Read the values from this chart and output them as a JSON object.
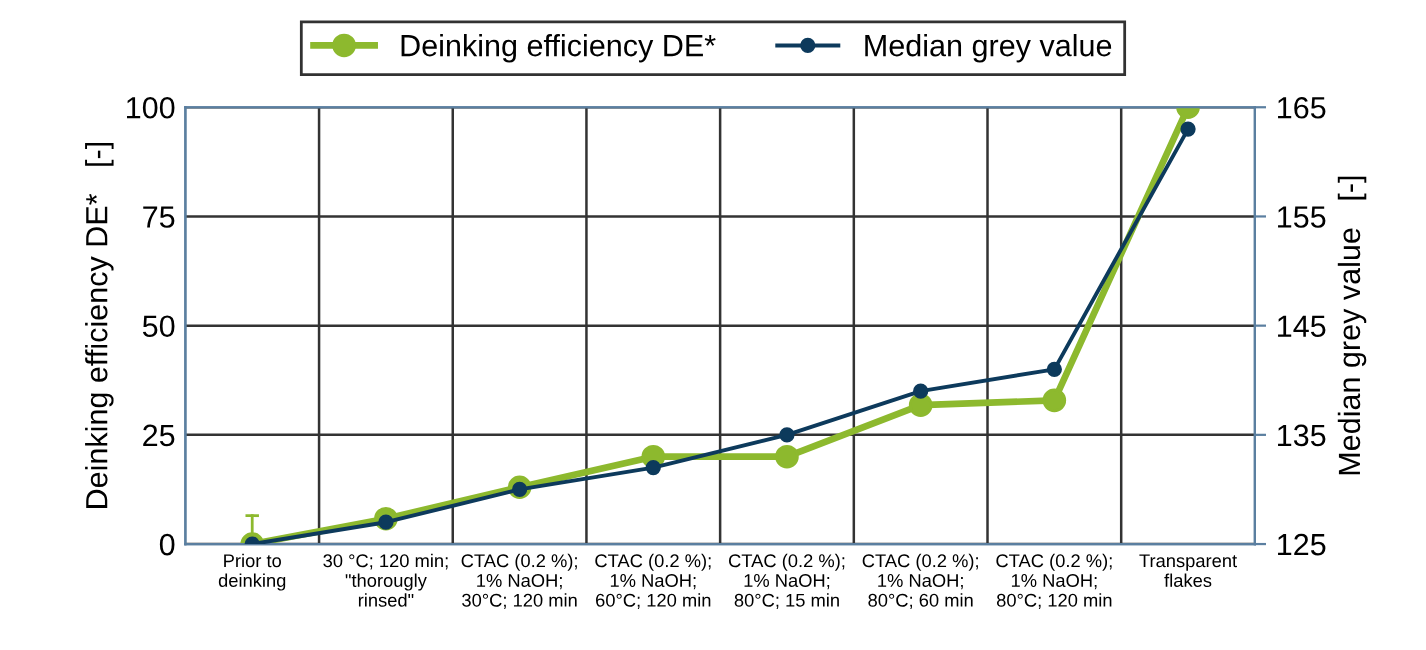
{
  "chart_data": {
    "type": "line",
    "categories": [
      "Prior to\ndeinking",
      "30 °C; 120 min;\n\"thorougly\nrinsed\"",
      "CTAC (0.2 %);\n1% NaOH;\n30°C; 120 min",
      "CTAC (0.2 %);\n1% NaOH;\n60°C; 120 min",
      "CTAC (0.2 %);\n1% NaOH;\n80°C; 15 min",
      "CTAC (0.2 %);\n1% NaOH;\n80°C; 60 min",
      "CTAC (0.2 %);\n1% NaOH;\n80°C; 120 min",
      "Transparent\nflakes"
    ],
    "ylabel": "Deinking efficiency DE*   [-]",
    "y2label": "Median grey value   [-]",
    "series": [
      {
        "name": "Deinking efficiency DE*",
        "color": "#8db92e",
        "values": [
          0,
          5.8,
          13,
          20,
          20,
          31.8,
          32.9,
          100
        ],
        "errors": [
          6.5,
          null,
          null,
          null,
          null,
          null,
          null,
          null
        ]
      },
      {
        "name": "Median grey value",
        "color": "#0d3a5c",
        "axis": "y2",
        "values": [
          125,
          127,
          130,
          132,
          135,
          139,
          141,
          163
        ]
      }
    ],
    "ylim": [
      0,
      100
    ],
    "yticks": [
      0,
      25,
      50,
      75,
      100
    ],
    "y2lim": [
      125,
      165
    ],
    "y2ticks": [
      125,
      135,
      145,
      155,
      165
    ],
    "grid": true,
    "legend": "top",
    "marker": "circle",
    "line_style": "solid"
  }
}
